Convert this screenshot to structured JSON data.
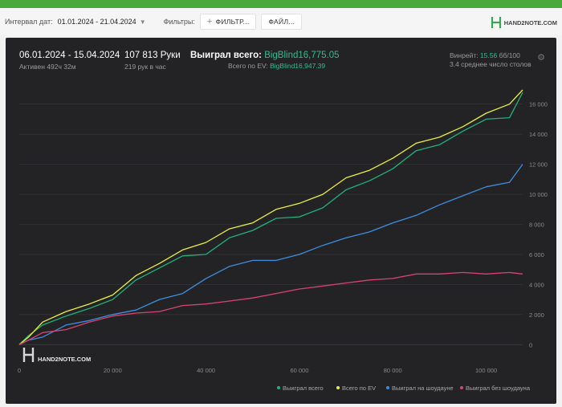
{
  "toolbar": {
    "date_label": "Интервал дат:",
    "date_value": "01.01.2024 - 21.04.2024",
    "filters_label": "Фильтры:",
    "filter_button": "ФИЛЬТР...",
    "file_button": "ФАЙЛ...",
    "brand": "HAND2NOTE.COM"
  },
  "stats": {
    "range": "06.01.2024 - 15.04.2024",
    "active": "Активен 492ч 32м",
    "hands": "107 813 Руки",
    "hands_rate": "219 рук в час",
    "won_label": "Выиграл всего:",
    "won_value": "BigBlind16,775.05",
    "ev_label": "Всего по EV:",
    "ev_value": "BigBlind16,947.39",
    "winrate_label": "Винрейт:",
    "winrate_value": "15.56",
    "winrate_suffix": "бб/100",
    "tables": "3.4 среднее число столов"
  },
  "watermark": "HAND2NOTE.COM",
  "colors": {
    "won": "#21b27a",
    "ev": "#ecf03c",
    "showdown": "#3d8ee0",
    "nonshowdown": "#d9436f",
    "background": "#232326",
    "grid": "#3a3a3d"
  },
  "chart_data": {
    "type": "line",
    "xlim": [
      0,
      107813
    ],
    "ylim": [
      -1000,
      17000
    ],
    "x_ticks": [
      "0",
      "20 000",
      "40 000",
      "60 000",
      "80 000",
      "100 000"
    ],
    "y_ticks": [
      "0",
      "2 000",
      "4 000",
      "6 000",
      "8 000",
      "10 000",
      "12 000",
      "14 000",
      "16 000"
    ],
    "grid": true,
    "legend_position": "bottom-right",
    "series": [
      {
        "name": "Выиграл всего",
        "color": "#21b27a",
        "x": [
          0,
          2000,
          5000,
          10000,
          15000,
          20000,
          25000,
          30000,
          35000,
          40000,
          45000,
          50000,
          55000,
          60000,
          65000,
          70000,
          75000,
          80000,
          85000,
          90000,
          95000,
          100000,
          105000,
          107813
        ],
        "y": [
          0,
          600,
          1300,
          1900,
          2400,
          3000,
          4300,
          5100,
          5900,
          6000,
          7100,
          7600,
          8400,
          8500,
          9100,
          10300,
          10900,
          11700,
          12900,
          13300,
          14200,
          15000,
          15100,
          16775
        ]
      },
      {
        "name": "Всего по EV",
        "color": "#ecf03c",
        "x": [
          0,
          2000,
          5000,
          10000,
          15000,
          20000,
          25000,
          30000,
          35000,
          40000,
          45000,
          50000,
          55000,
          60000,
          65000,
          70000,
          75000,
          80000,
          85000,
          90000,
          95000,
          100000,
          105000,
          107813
        ],
        "y": [
          0,
          500,
          1500,
          2200,
          2700,
          3300,
          4600,
          5400,
          6300,
          6800,
          7700,
          8100,
          9000,
          9400,
          10000,
          11100,
          11600,
          12400,
          13400,
          13800,
          14500,
          15400,
          16000,
          16947
        ]
      },
      {
        "name": "Выиграл на шоудауне",
        "color": "#3d8ee0",
        "x": [
          0,
          2000,
          5000,
          10000,
          15000,
          20000,
          25000,
          30000,
          35000,
          40000,
          45000,
          50000,
          55000,
          60000,
          65000,
          70000,
          75000,
          80000,
          85000,
          90000,
          95000,
          100000,
          105000,
          107813
        ],
        "y": [
          0,
          300,
          500,
          1300,
          1600,
          2000,
          2300,
          3000,
          3400,
          4400,
          5200,
          5600,
          5600,
          6000,
          6600,
          7100,
          7500,
          8100,
          8600,
          9300,
          9900,
          10500,
          10800,
          12000
        ]
      },
      {
        "name": "Выиграл без шоудауна",
        "color": "#d9436f",
        "x": [
          0,
          2000,
          5000,
          10000,
          15000,
          20000,
          25000,
          30000,
          35000,
          40000,
          45000,
          50000,
          55000,
          60000,
          65000,
          70000,
          75000,
          80000,
          85000,
          90000,
          95000,
          100000,
          105000,
          107813
        ],
        "y": [
          0,
          300,
          800,
          1000,
          1500,
          1900,
          2100,
          2200,
          2600,
          2700,
          2900,
          3100,
          3400,
          3700,
          3900,
          4100,
          4300,
          4400,
          4700,
          4700,
          4800,
          4700,
          4800,
          4700
        ]
      }
    ]
  }
}
